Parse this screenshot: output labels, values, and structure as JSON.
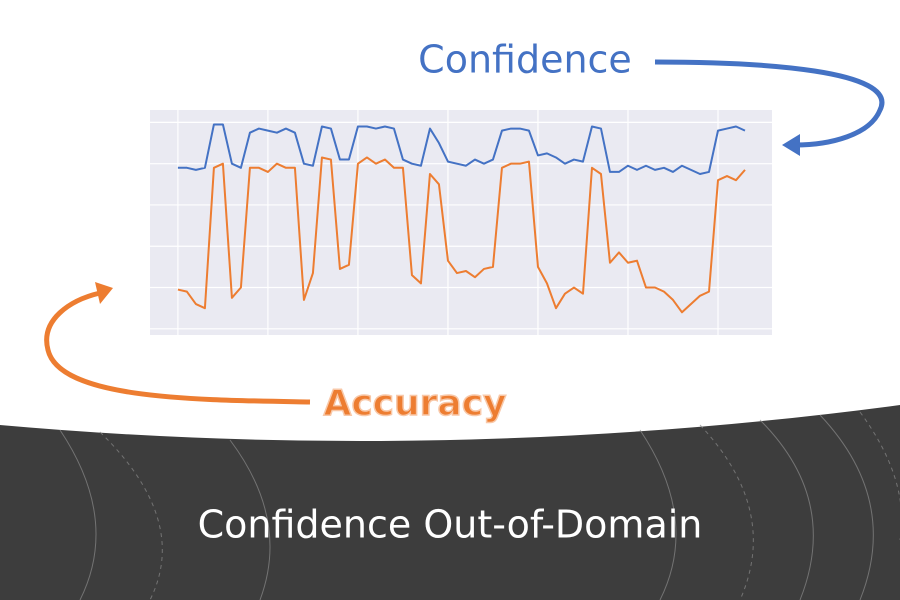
{
  "chart_data": {
    "type": "line",
    "title": "Confidence Out-of-Domain",
    "x": [
      0,
      10,
      20,
      30,
      40,
      50,
      60,
      70,
      80,
      90,
      100,
      110,
      120,
      130,
      140,
      150,
      160,
      170,
      180,
      190,
      200,
      210,
      220,
      230,
      240,
      250,
      260,
      270,
      280,
      290,
      300,
      310,
      320,
      330,
      340,
      350,
      360,
      370,
      380,
      390,
      400,
      410,
      420,
      430,
      440,
      450,
      460,
      470,
      480,
      490,
      500,
      510,
      520,
      530,
      540,
      550,
      560,
      570,
      580,
      590,
      600,
      610,
      620,
      630
    ],
    "series": [
      {
        "name": "Confidence",
        "color": "#4472c4",
        "values": [
          0.78,
          0.78,
          0.77,
          0.78,
          0.99,
          0.99,
          0.8,
          0.78,
          0.95,
          0.97,
          0.96,
          0.95,
          0.97,
          0.95,
          0.8,
          0.79,
          0.98,
          0.97,
          0.82,
          0.82,
          0.98,
          0.98,
          0.97,
          0.98,
          0.97,
          0.82,
          0.8,
          0.79,
          0.97,
          0.9,
          0.81,
          0.8,
          0.79,
          0.82,
          0.8,
          0.82,
          0.96,
          0.97,
          0.97,
          0.96,
          0.84,
          0.85,
          0.83,
          0.8,
          0.82,
          0.81,
          0.98,
          0.97,
          0.76,
          0.76,
          0.79,
          0.77,
          0.79,
          0.77,
          0.78,
          0.76,
          0.79,
          0.77,
          0.75,
          0.76,
          0.96,
          0.97,
          0.98,
          0.96
        ]
      },
      {
        "name": "Accuracy",
        "color": "#ed7d31",
        "values": [
          0.19,
          0.18,
          0.12,
          0.1,
          0.78,
          0.8,
          0.15,
          0.2,
          0.78,
          0.78,
          0.76,
          0.8,
          0.78,
          0.78,
          0.14,
          0.27,
          0.83,
          0.82,
          0.29,
          0.31,
          0.8,
          0.83,
          0.8,
          0.82,
          0.78,
          0.78,
          0.26,
          0.22,
          0.75,
          0.7,
          0.33,
          0.27,
          0.28,
          0.25,
          0.29,
          0.3,
          0.78,
          0.8,
          0.8,
          0.81,
          0.3,
          0.22,
          0.1,
          0.17,
          0.2,
          0.17,
          0.78,
          0.75,
          0.32,
          0.37,
          0.32,
          0.33,
          0.2,
          0.2,
          0.18,
          0.14,
          0.08,
          0.12,
          0.16,
          0.18,
          0.72,
          0.74,
          0.72,
          0.77
        ]
      }
    ],
    "xlim": [
      -31,
      660
    ],
    "xticks": [
      0,
      100,
      200,
      300,
      400,
      500,
      600
    ],
    "ylim": [
      -0.03,
      1.06
    ],
    "yticks": [
      0,
      0.2,
      0.4,
      0.6,
      0.8,
      1
    ],
    "grid": true
  }
}
